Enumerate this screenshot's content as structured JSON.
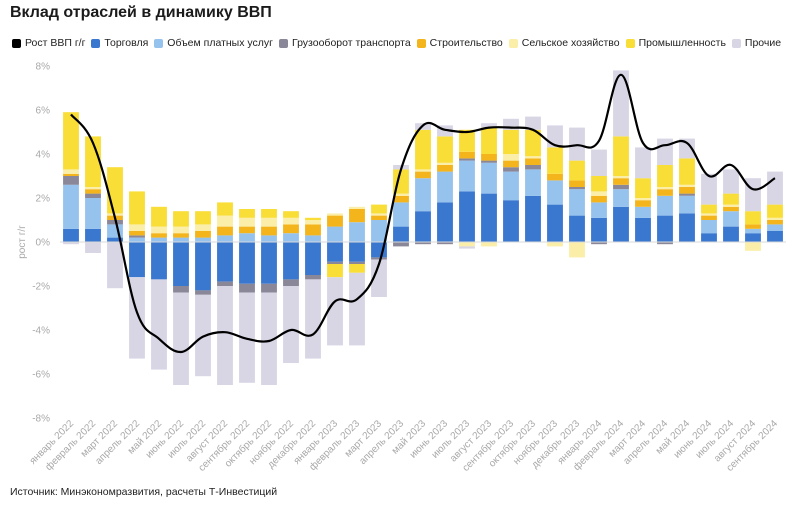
{
  "title": "Вклад отраслей в динамику ВВП",
  "source": "Источник: Минэкономразвития, расчеты Т-Инвестиций",
  "chart_data": {
    "type": "bar",
    "stacked": true,
    "title": "Вклад отраслей в динамику ВВП",
    "ylabel": "рост г/г",
    "xlabel": "",
    "ylim": [
      -8,
      8
    ],
    "ytick_step": 2,
    "ytick_suffix": "%",
    "categories": [
      "январь 2022",
      "февраль 2022",
      "март 2022",
      "апрель 2022",
      "май 2022",
      "июнь 2022",
      "июль 2022",
      "август 2022",
      "сентябрь 2022",
      "октябрь 2022",
      "ноябрь 2022",
      "декабрь 2022",
      "январь 2023",
      "февраль 2023",
      "март 2023",
      "апрель 2023",
      "май 2023",
      "июнь 2023",
      "июль 2023",
      "август 2023",
      "сентябрь 2023",
      "октябрь 2023",
      "ноябрь 2023",
      "декабрь 2023",
      "январь 2024",
      "февраль 2024",
      "март 2024",
      "апрель 2024",
      "май 2024",
      "июнь 2024",
      "июль 2024",
      "август 2024",
      "сентябрь 2024"
    ],
    "x_tick_labels": [
      "январь 2022",
      "февраль 2022",
      "март 2022",
      "апрель 2022",
      "май 2022",
      "июнь 2022",
      "июль 2022",
      "август 2022",
      "сентябрь 2022",
      "октябрь 2022",
      "ноябрь 2022",
      "декабрь 2022",
      "январь 2023",
      "февраль 2023",
      "март 2023",
      "апрель 2023",
      "май 2023",
      "июнь 2023",
      "июль 2023",
      "август 2023",
      "сентябрь 2023",
      "октябрь 2023",
      "ноябрь 2023",
      "декабрь 2023",
      "январь 2024",
      "февраль 2024",
      "март 2024",
      "апрель 2024",
      "май 2024",
      "июнь 2024",
      "июль 2024",
      "август 2024",
      "сентябрь 2024"
    ],
    "series": [
      {
        "name": "Торговля",
        "color": "#3a78d0",
        "values": [
          0.6,
          0.6,
          0.2,
          -1.6,
          -1.7,
          -2.0,
          -2.2,
          -1.8,
          -1.9,
          -1.9,
          -1.7,
          -1.5,
          -0.9,
          -0.9,
          -0.7,
          0.7,
          1.4,
          1.8,
          2.3,
          2.2,
          1.9,
          2.1,
          1.7,
          1.2,
          1.1,
          1.6,
          1.1,
          1.2,
          1.3,
          0.4,
          0.7,
          0.4,
          0.5
        ]
      },
      {
        "name": "Объем платных услуг",
        "color": "#96c3ee",
        "values": [
          2.0,
          1.4,
          0.6,
          0.2,
          0.2,
          0.2,
          0.2,
          0.3,
          0.4,
          0.3,
          0.4,
          0.3,
          0.7,
          0.9,
          1.0,
          1.1,
          1.5,
          1.4,
          1.4,
          1.4,
          1.3,
          1.2,
          1.1,
          1.2,
          0.7,
          0.8,
          0.5,
          0.9,
          0.8,
          0.6,
          0.7,
          0.2,
          0.3
        ]
      },
      {
        "name": "Грузооборот транспорта",
        "color": "#8a8898",
        "values": [
          0.4,
          0.2,
          0.2,
          0.1,
          0.0,
          -0.3,
          -0.2,
          -0.2,
          -0.4,
          -0.4,
          -0.3,
          -0.2,
          -0.1,
          -0.1,
          -0.1,
          -0.2,
          -0.1,
          -0.1,
          0.1,
          0.1,
          0.2,
          0.2,
          0.0,
          0.1,
          -0.1,
          0.2,
          0.0,
          -0.1,
          0.1,
          0.0,
          0.0,
          0.0,
          0.0
        ]
      },
      {
        "name": "Строительство",
        "color": "#f4b51c",
        "values": [
          0.1,
          0.2,
          0.2,
          0.2,
          0.2,
          0.2,
          0.3,
          0.4,
          0.3,
          0.4,
          0.4,
          0.5,
          0.5,
          0.6,
          0.2,
          0.3,
          0.3,
          0.3,
          0.3,
          0.3,
          0.3,
          0.3,
          0.3,
          0.3,
          0.3,
          0.3,
          0.3,
          0.3,
          0.3,
          0.2,
          0.2,
          0.2,
          0.2
        ]
      },
      {
        "name": "Сельское хозяйство",
        "color": "#fbeea8",
        "values": [
          0.2,
          0.1,
          0.1,
          0.3,
          0.3,
          0.3,
          0.3,
          0.5,
          0.4,
          0.4,
          0.3,
          0.2,
          0.1,
          0.1,
          0.1,
          0.1,
          0.1,
          0.1,
          -0.2,
          -0.2,
          0.3,
          0.1,
          -0.2,
          -0.7,
          0.2,
          0.1,
          0.1,
          0.1,
          0.1,
          0.1,
          0.1,
          -0.4,
          0.1
        ]
      },
      {
        "name": "Промышленность",
        "color": "#f9de38",
        "values": [
          2.6,
          2.3,
          2.1,
          1.5,
          0.9,
          0.7,
          0.6,
          0.6,
          0.4,
          0.4,
          0.3,
          0.1,
          -0.6,
          -0.4,
          0.4,
          1.1,
          1.8,
          1.2,
          1.0,
          1.2,
          1.1,
          1.2,
          1.2,
          0.9,
          0.7,
          1.8,
          0.9,
          1.0,
          1.2,
          0.4,
          0.5,
          0.6,
          0.6
        ]
      },
      {
        "name": "Прочие",
        "color": "#d8d6e5",
        "values": [
          -0.1,
          -0.5,
          -2.1,
          -3.7,
          -4.1,
          -4.2,
          -3.7,
          -4.5,
          -4.1,
          -4.2,
          -3.5,
          -3.6,
          -3.1,
          -3.3,
          -1.7,
          0.2,
          0.3,
          0.5,
          -0.1,
          0.2,
          0.5,
          0.6,
          1.0,
          1.5,
          1.2,
          3.0,
          1.4,
          1.2,
          0.9,
          1.4,
          1.1,
          1.5,
          1.5
        ]
      }
    ],
    "line": {
      "name": "Рост ВВП г/г",
      "color": "#000000",
      "values": [
        5.8,
        4.5,
        1.1,
        -3.2,
        -4.4,
        -5.0,
        -4.3,
        -4.1,
        -4.4,
        -4.5,
        -4.0,
        -4.2,
        -2.7,
        -2.6,
        -1.0,
        3.3,
        5.3,
        5.1,
        5.0,
        5.2,
        5.2,
        5.1,
        4.4,
        4.4,
        4.6,
        7.6,
        4.5,
        4.4,
        4.5,
        3.0,
        3.5,
        2.4,
        2.9
      ]
    },
    "legend_position": "top-left",
    "legend_order": [
      "Рост ВВП г/г",
      "Торговля",
      "Объем платных услуг",
      "Грузооборот транспорта",
      "Строительство",
      "Сельское хозяйство",
      "Промышленность",
      "Прочие"
    ],
    "grid": false
  }
}
